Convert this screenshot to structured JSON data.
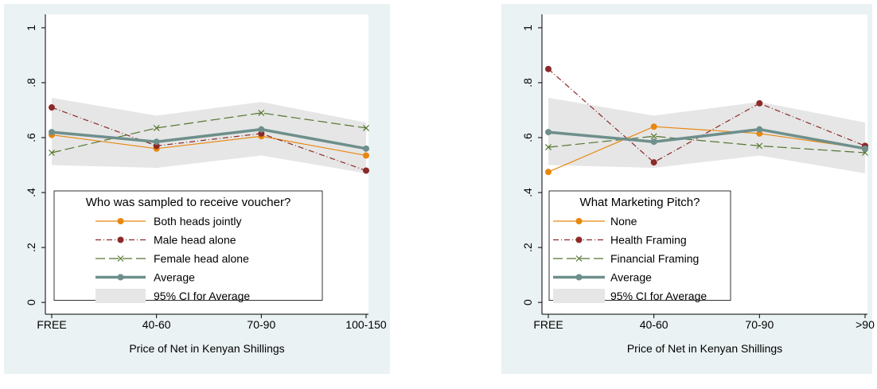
{
  "chart_data": [
    {
      "type": "line",
      "xlabel": "Price of Net in Kenyan Shillings",
      "legend_title": "Who was sampled to receive voucher?",
      "categories": [
        "FREE",
        "40-60",
        "70-90",
        "100-150"
      ],
      "ylim": [
        -0.043,
        1.049
      ],
      "yticks": [
        0,
        {
          "value": 0.2,
          "label": ".2"
        },
        {
          "value": 0.4,
          "label": ".4"
        },
        {
          "value": 0.6,
          "label": ".6"
        },
        {
          "value": 0.8,
          "label": ".8"
        },
        1
      ],
      "series": [
        {
          "name": "Both heads jointly",
          "color": "#e8870e",
          "line_style": "solid",
          "marker": "circle",
          "values": [
            0.61,
            0.56,
            0.605,
            0.535
          ]
        },
        {
          "name": "Male head alone",
          "color": "#8c2a2a",
          "line_style": "dashdot",
          "marker": "circle",
          "values": [
            0.71,
            0.57,
            0.615,
            0.48
          ]
        },
        {
          "name": "Female head alone",
          "color": "#55752f",
          "line_style": "longdash",
          "marker": "x",
          "values": [
            0.545,
            0.635,
            0.69,
            0.635
          ]
        },
        {
          "name": "Average",
          "color": "#6e8f8c",
          "line_style": "bold",
          "marker": "circle",
          "values": [
            0.62,
            0.585,
            0.63,
            0.56
          ]
        }
      ],
      "ci": {
        "name": "95% CI for Average",
        "color": "#e6e6e6",
        "upper": [
          0.745,
          0.68,
          0.73,
          0.655
        ],
        "lower": [
          0.5,
          0.49,
          0.535,
          0.47
        ]
      }
    },
    {
      "type": "line",
      "xlabel": "Price of Net in Kenyan Shillings",
      "legend_title": "What Marketing Pitch?",
      "categories": [
        "FREE",
        "40-60",
        "70-90",
        ">90"
      ],
      "ylim": [
        -0.043,
        1.049
      ],
      "yticks": [
        0,
        {
          "value": 0.2,
          "label": ".2"
        },
        {
          "value": 0.4,
          "label": ".4"
        },
        {
          "value": 0.6,
          "label": ".6"
        },
        {
          "value": 0.8,
          "label": ".8"
        },
        1
      ],
      "series": [
        {
          "name": "None",
          "color": "#e8870e",
          "line_style": "solid",
          "marker": "circle",
          "values": [
            0.475,
            0.64,
            0.615,
            0.56
          ]
        },
        {
          "name": "Health Framing",
          "color": "#8c2a2a",
          "line_style": "dashdot",
          "marker": "circle",
          "values": [
            0.85,
            0.51,
            0.725,
            0.57
          ]
        },
        {
          "name": "Financial Framing",
          "color": "#55752f",
          "line_style": "longdash",
          "marker": "x",
          "values": [
            0.565,
            0.605,
            0.57,
            0.545
          ]
        },
        {
          "name": "Average",
          "color": "#6e8f8c",
          "line_style": "bold",
          "marker": "circle",
          "values": [
            0.62,
            0.585,
            0.63,
            0.56
          ]
        }
      ],
      "ci": {
        "name": "95% CI for Average",
        "color": "#e6e6e6",
        "upper": [
          0.745,
          0.68,
          0.73,
          0.655
        ],
        "lower": [
          0.5,
          0.49,
          0.535,
          0.47
        ]
      }
    }
  ]
}
